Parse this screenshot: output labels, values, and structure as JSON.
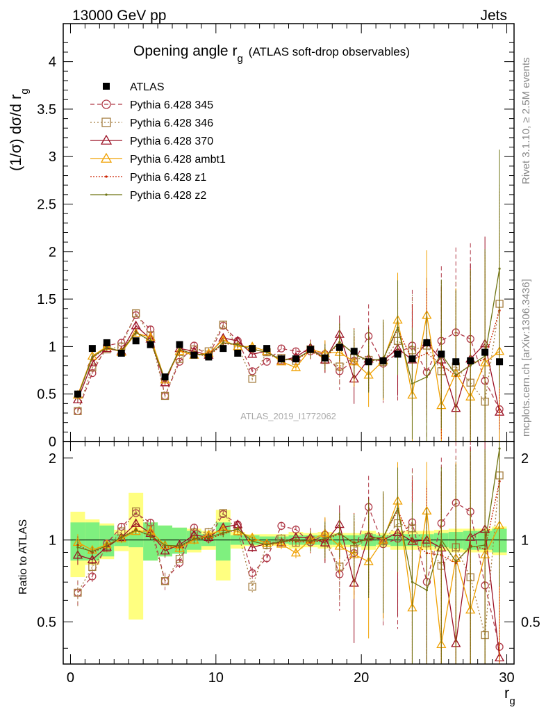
{
  "header": {
    "left": "13000 GeV pp",
    "right": "Jets"
  },
  "side": {
    "rivet": "Rivet 3.1.10, ≥ 2.5M events",
    "mcplots": "mcplots.cern.ch [arXiv:1306.3436]"
  },
  "chart_data": {
    "type": "line",
    "title_main": "Opening angle r",
    "title_sub": "g",
    "title_extra": "(ATLAS soft-drop observables)",
    "analysis": "ATLAS_2019_I1772062",
    "xlabel": "r",
    "xlabel_sub": "g",
    "ylabel": "(1/σ) dσ/d r",
    "ylabel_sub": "g",
    "ratio_ylabel": "Ratio to ATLAS",
    "xlim": [
      -0.5,
      30.5
    ],
    "ylim": [
      0,
      4.4
    ],
    "ratio_ylim": [
      0.35,
      2.3
    ],
    "xticks": [
      0,
      10,
      20,
      30
    ],
    "yticks": [
      {
        "v": 0,
        "label": "0"
      },
      {
        "v": 0.5,
        "label": "0.5"
      },
      {
        "v": 1,
        "label": "1"
      },
      {
        "v": 1.5,
        "label": "1.5"
      },
      {
        "v": 2,
        "label": "2"
      },
      {
        "v": 2.5,
        "label": "2.5"
      },
      {
        "v": 3,
        "label": "3"
      },
      {
        "v": 3.5,
        "label": "3.5"
      },
      {
        "v": 4,
        "label": "4"
      }
    ],
    "ratio_yticks": [
      {
        "v": 0.5,
        "label": "0.5"
      },
      {
        "v": 1,
        "label": "1"
      },
      {
        "v": 2,
        "label": "2"
      }
    ],
    "x": [
      0.5,
      1.5,
      2.5,
      3.5,
      4.5,
      5.5,
      6.5,
      7.5,
      8.5,
      9.5,
      10.5,
      11.5,
      12.5,
      13.5,
      14.5,
      15.5,
      16.5,
      17.5,
      18.5,
      19.5,
      20.5,
      21.5,
      22.5,
      23.5,
      24.5,
      25.5,
      26.5,
      27.5,
      28.5,
      29.5
    ],
    "data": {
      "name": "ATLAS",
      "color": "#000000",
      "values": [
        0.5,
        0.98,
        1.04,
        0.93,
        1.06,
        1.02,
        0.68,
        1.02,
        0.91,
        0.89,
        0.98,
        0.93,
        0.98,
        0.98,
        0.87,
        0.87,
        0.97,
        0.88,
        0.99,
        0.95,
        0.84,
        0.85,
        0.92,
        0.87,
        1.04,
        0.92,
        0.84,
        0.85,
        0.94,
        0.84
      ],
      "band_inner": [
        0.16,
        0.16,
        0.13,
        0.05,
        0.06,
        0.16,
        0.13,
        0.11,
        0.08,
        0.05,
        0.16,
        0.04,
        0.04,
        0.03,
        0.03,
        0.04,
        0.04,
        0.04,
        0.04,
        0.04,
        0.05,
        0.04,
        0.05,
        0.05,
        0.05,
        0.06,
        0.07,
        0.08,
        0.08,
        0.1
      ],
      "band_outer": [
        0.27,
        0.19,
        0.15,
        0.09,
        0.49,
        0.16,
        0.13,
        0.11,
        0.1,
        0.08,
        0.29,
        0.07,
        0.05,
        0.05,
        0.05,
        0.07,
        0.06,
        0.07,
        0.06,
        0.06,
        0.08,
        0.06,
        0.08,
        0.08,
        0.08,
        0.09,
        0.1,
        0.1,
        0.1,
        0.12
      ]
    },
    "series": [
      {
        "name": "Pythia 6.428 345",
        "color": "#b03a48",
        "dash": "6,4",
        "marker": "circle",
        "values": [
          0.32,
          0.72,
          1.01,
          1.04,
          1.33,
          1.18,
          0.48,
          0.84,
          1.01,
          0.9,
          1.22,
          1.06,
          0.74,
          0.84,
          0.98,
          0.95,
          0.95,
          0.92,
          0.74,
          0.85,
          1.11,
          0.82,
          0.93,
          1.01,
          0.73,
          1.06,
          1.15,
          1.08,
          0.64,
          0.34
        ]
      },
      {
        "name": "Pythia 6.428 346",
        "color": "#a47c3e",
        "dash": "2,3",
        "marker": "square",
        "values": [
          0.32,
          0.78,
          0.97,
          1.0,
          1.35,
          1.12,
          0.48,
          0.87,
          0.97,
          0.95,
          1.23,
          1.0,
          0.66,
          0.94,
          0.88,
          0.85,
          0.97,
          0.86,
          0.79,
          0.88,
          0.86,
          0.84,
          1.06,
          0.96,
          1.01,
          0.74,
          0.79,
          0.62,
          0.42,
          1.45
        ]
      },
      {
        "name": "Pythia 6.428 370",
        "color": "#9b1024",
        "dash": "",
        "marker": "triangle",
        "values": [
          0.44,
          0.83,
          0.98,
          0.95,
          1.22,
          1.08,
          0.62,
          0.98,
          0.95,
          0.91,
          1.09,
          1.06,
          0.92,
          0.95,
          0.85,
          0.89,
          0.99,
          0.86,
          1.13,
          0.66,
          0.87,
          0.85,
          0.98,
          0.86,
          1.04,
          0.86,
          0.35,
          0.87,
          1.03,
          0.31
        ]
      },
      {
        "name": "Pythia 6.428 ambt1",
        "color": "#f0a000",
        "dash": "",
        "marker": "triangle",
        "values": [
          0.49,
          0.9,
          1.0,
          0.94,
          1.14,
          1.1,
          0.65,
          0.95,
          0.91,
          0.93,
          1.07,
          1.0,
          1.0,
          0.95,
          0.84,
          0.78,
          0.97,
          0.93,
          0.94,
          0.84,
          0.7,
          0.85,
          1.28,
          0.49,
          1.33,
          0.38,
          0.72,
          0.47,
          0.83,
          0.95
        ]
      },
      {
        "name": "Pythia 6.428 z1",
        "color": "#cc2200",
        "dash": "2,2",
        "marker": "dot",
        "values": [
          0.48,
          0.88,
          0.99,
          0.95,
          1.16,
          1.05,
          0.64,
          0.96,
          0.92,
          0.9,
          1.03,
          1.02,
          0.97,
          0.94,
          0.86,
          0.86,
          0.95,
          0.88,
          1.04,
          0.93,
          0.85,
          0.87,
          1.18,
          0.86,
          0.93,
          0.81,
          0.69,
          0.81,
          0.87,
          1.38
        ]
      },
      {
        "name": "Pythia 6.428 z2",
        "color": "#6e7412",
        "dash": "",
        "marker": "dot",
        "values": [
          0.47,
          0.89,
          0.99,
          0.95,
          1.15,
          1.06,
          0.65,
          0.97,
          0.92,
          0.91,
          1.04,
          1.02,
          0.97,
          0.94,
          0.86,
          0.87,
          0.96,
          0.89,
          1.05,
          0.92,
          0.85,
          0.87,
          1.2,
          0.61,
          0.68,
          0.92,
          0.7,
          0.8,
          0.9,
          1.82
        ]
      }
    ]
  }
}
